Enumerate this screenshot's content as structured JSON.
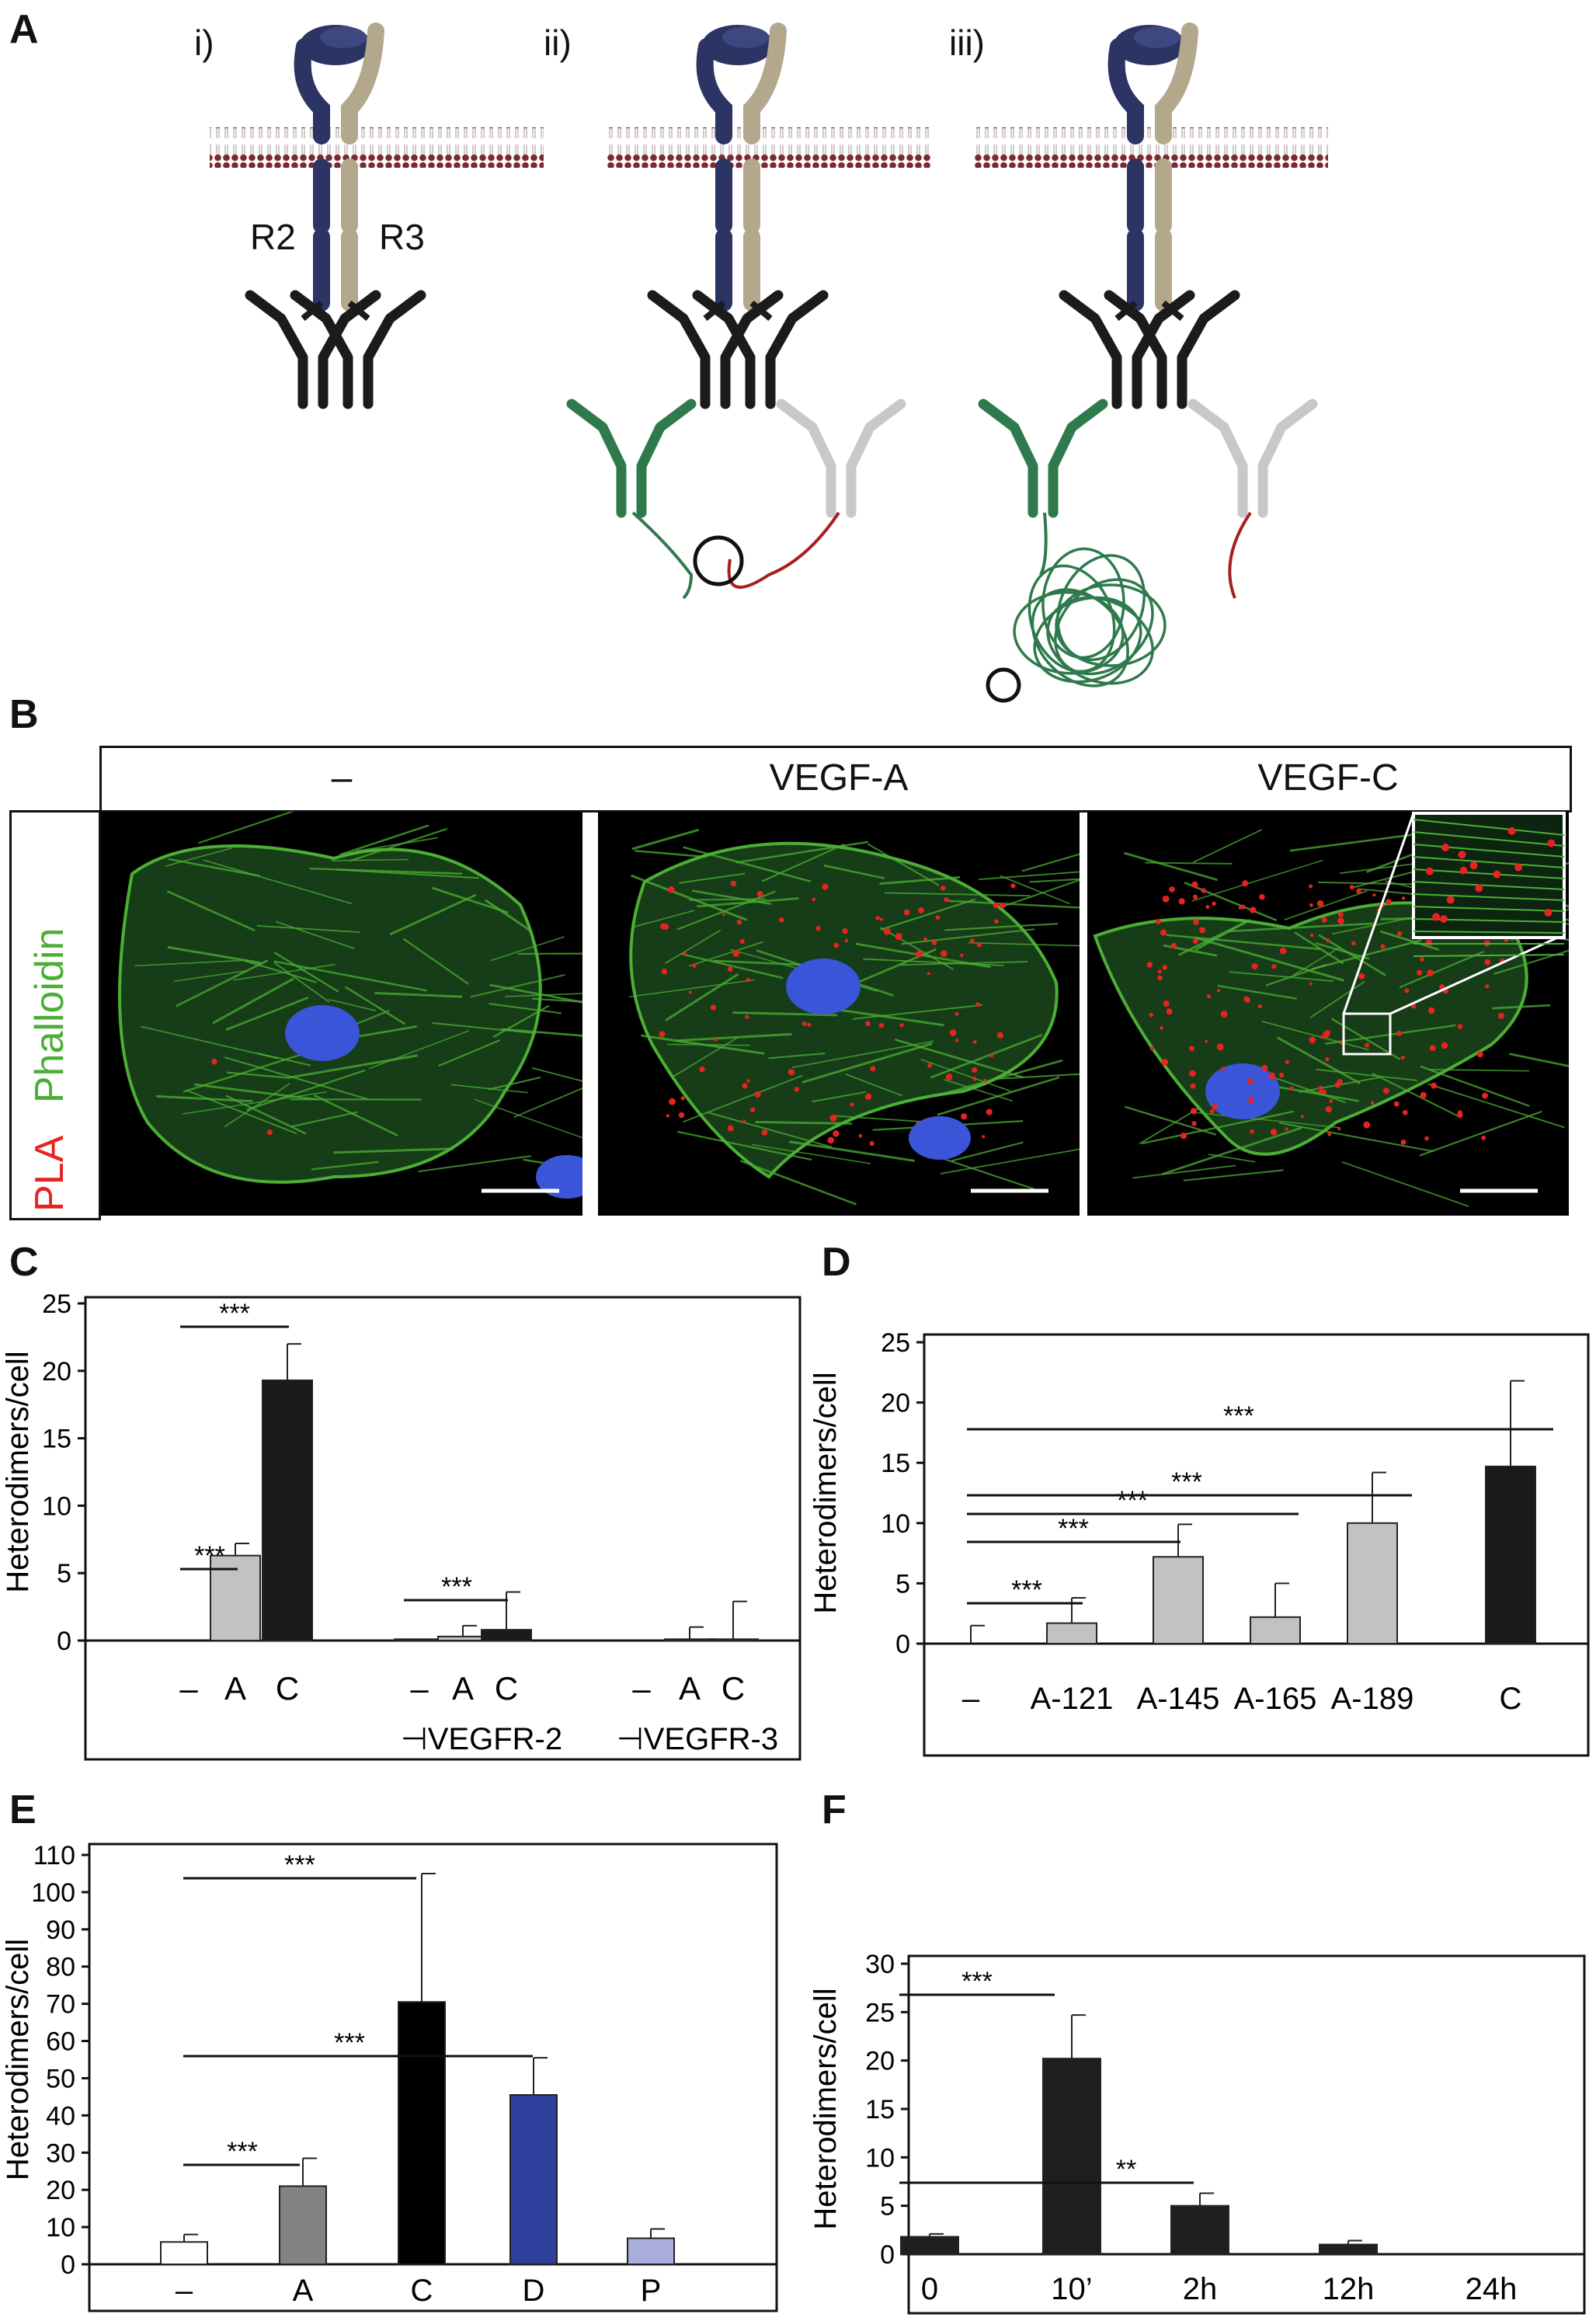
{
  "panel_labels": {
    "a": "A",
    "b": "B",
    "c": "C",
    "d": "D",
    "e": "E",
    "f": "F"
  },
  "panel_a": {
    "subpanels": [
      "i)",
      "ii)",
      "iii)"
    ],
    "receptor_labels": {
      "r2": "R2",
      "r3": "R3"
    }
  },
  "panel_b": {
    "conditions": [
      "–",
      "VEGF-A",
      "VEGF-C"
    ],
    "stain_labels": {
      "pla": "PLA",
      "phalloidin": "Phalloidin"
    },
    "colors": {
      "pla": "#e8231f",
      "phalloidin": "#4caf35",
      "nucleus": "#3a55d8"
    }
  },
  "chart_data": [
    {
      "id": "C",
      "type": "bar",
      "ylabel": "Heterodimers/cell",
      "ylim": [
        0,
        25
      ],
      "yticks": [
        0,
        5,
        10,
        15,
        20,
        25
      ],
      "categories": [
        "–",
        "A",
        "C",
        "–",
        "A",
        "C",
        "–",
        "A",
        "C"
      ],
      "values": [
        0,
        6.3,
        19.3,
        0.1,
        0.3,
        0.8,
        0,
        0.1,
        0.1
      ],
      "errors": [
        0,
        0.9,
        2.7,
        0,
        0.8,
        2.8,
        0,
        0.9,
        2.8
      ],
      "colors": [
        "#ffffff",
        "#c0c2c4",
        "#1a1a1a",
        "#ffffff",
        "#c0c2c4",
        "#1a1a1a",
        "#ffffff",
        "#c0c2c4",
        "#1a1a1a"
      ],
      "groups": [
        "",
        "⊣VEGFR-2",
        "⊣VEGFR-3"
      ],
      "significance": [
        {
          "from": 0,
          "to": 1,
          "label": "***"
        },
        {
          "from": 0,
          "to": 2,
          "label": "***"
        },
        {
          "from": 3,
          "to": 5,
          "label": "***"
        }
      ]
    },
    {
      "id": "D",
      "type": "bar",
      "ylabel": "Heterodimers/cell",
      "ylim": [
        0,
        25
      ],
      "yticks": [
        0,
        5,
        10,
        15,
        20,
        25
      ],
      "categories": [
        "–",
        "A-121",
        "A-145",
        "A-165",
        "A-189",
        "C"
      ],
      "values": [
        0,
        1.7,
        7.2,
        2.2,
        10,
        14.7
      ],
      "errors": [
        1.5,
        2.1,
        2.7,
        2.8,
        4.2,
        7.1
      ],
      "colors": [
        "#ffffff",
        "#c0c2c4",
        "#c0c2c4",
        "#c0c2c4",
        "#c0c2c4",
        "#1a1a1a"
      ],
      "significance": [
        {
          "from": 0,
          "to": 1,
          "label": "***"
        },
        {
          "from": 0,
          "to": 2,
          "label": "***"
        },
        {
          "from": 0,
          "to": 3,
          "label": "***"
        },
        {
          "from": 0,
          "to": 4,
          "label": "***"
        },
        {
          "from": 0,
          "to": 5,
          "label": "***"
        }
      ]
    },
    {
      "id": "E",
      "type": "bar",
      "ylabel": "Heterodimers/cell",
      "ylim": [
        0,
        110
      ],
      "yticks": [
        0,
        10,
        20,
        30,
        40,
        50,
        60,
        70,
        80,
        90,
        100,
        110
      ],
      "categories": [
        "–",
        "A",
        "C",
        "D",
        "P"
      ],
      "values": [
        6,
        21,
        70.5,
        45.5,
        7
      ],
      "errors": [
        2,
        7.5,
        34.5,
        10,
        2.5
      ],
      "colors": [
        "#ffffff",
        "#838383",
        "#000000",
        "#2f3f9c",
        "#a9aedc"
      ],
      "significance": [
        {
          "from": 0,
          "to": 1,
          "label": "***"
        },
        {
          "from": 0,
          "to": 2,
          "label": "***"
        },
        {
          "from": 0,
          "to": 3,
          "label": "***"
        }
      ]
    },
    {
      "id": "F",
      "type": "bar",
      "ylabel": "Heterodimers/cell",
      "ylim": [
        0,
        30
      ],
      "yticks": [
        0,
        5,
        10,
        15,
        20,
        25,
        30
      ],
      "categories": [
        "0",
        "10’",
        "2h",
        "12h",
        "24h"
      ],
      "values": [
        1.8,
        20.2,
        5,
        1,
        0
      ],
      "errors": [
        0.3,
        4.5,
        1.3,
        0.4,
        0
      ],
      "colors": [
        "#1f1f1f",
        "#1f1f1f",
        "#1f1f1f",
        "#1f1f1f",
        "#1f1f1f"
      ],
      "significance": [
        {
          "from": 0,
          "to": 1,
          "label": "***"
        },
        {
          "from": 0,
          "to": 2,
          "label": "**"
        }
      ]
    }
  ]
}
